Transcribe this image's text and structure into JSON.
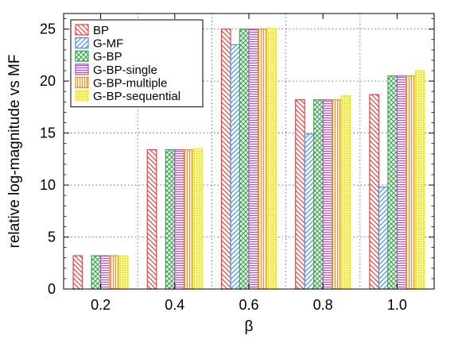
{
  "chart_data": {
    "type": "bar",
    "title": "",
    "xlabel": "β",
    "ylabel": "relative log-magnitude vs MF",
    "categories": [
      "0.2",
      "0.4",
      "0.6",
      "0.8",
      "1.0"
    ],
    "ylim": [
      0,
      26.5
    ],
    "yticks": [
      0,
      5,
      10,
      15,
      20,
      25
    ],
    "grid": true,
    "legend_position": "top-left",
    "series": [
      {
        "name": "BP",
        "color": "#e8413e",
        "pattern": "diagonal-down",
        "values": [
          3.2,
          13.4,
          25.0,
          18.2,
          18.7
        ]
      },
      {
        "name": "G-MF",
        "color": "#4a90d9",
        "pattern": "diagonal-up",
        "values": [
          0,
          0,
          23.5,
          14.9,
          9.8
        ]
      },
      {
        "name": "G-BP",
        "color": "#3aa84a",
        "pattern": "crosshatch-diagonal",
        "values": [
          3.2,
          13.4,
          25.0,
          18.2,
          20.5
        ]
      },
      {
        "name": "G-BP-single",
        "color": "#b04fc9",
        "pattern": "horizontal",
        "values": [
          3.2,
          13.4,
          25.0,
          18.2,
          20.5
        ]
      },
      {
        "name": "G-BP-multiple",
        "color": "#f28c1e",
        "pattern": "vertical",
        "values": [
          3.2,
          13.4,
          25.0,
          18.2,
          20.5
        ]
      },
      {
        "name": "G-BP-sequential",
        "color": "#f2e830",
        "pattern": "grid",
        "values": [
          3.2,
          13.5,
          25.1,
          18.6,
          21.0
        ]
      }
    ]
  }
}
